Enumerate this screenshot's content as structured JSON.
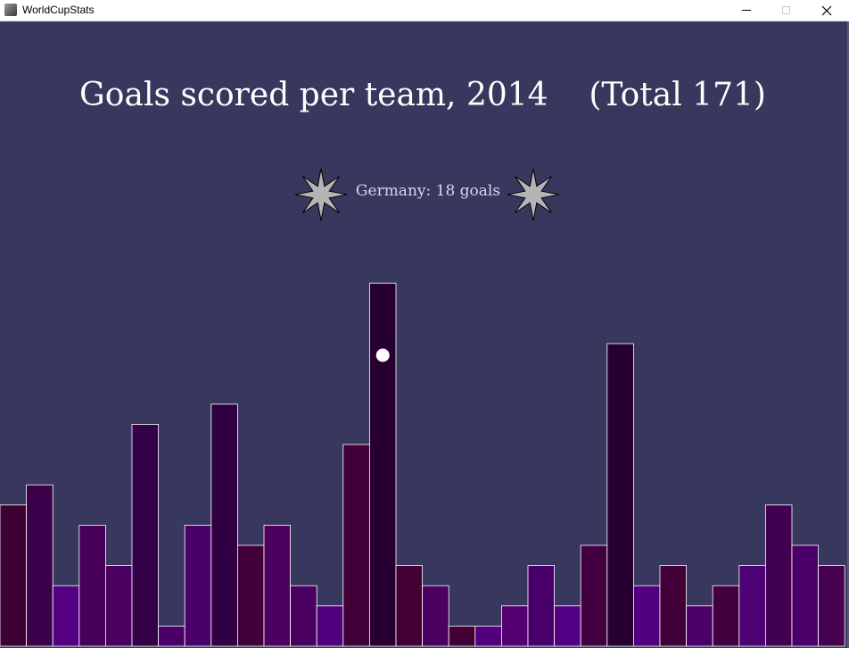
{
  "window": {
    "title": "WorldCupStats"
  },
  "chart_data": {
    "type": "bar",
    "title": "Goals scored per team, 2014",
    "total_label": "(Total 171)",
    "highlight": {
      "label": "Germany: 18 goals",
      "team": "Germany",
      "value": 18
    },
    "values": [
      7,
      8,
      3,
      6,
      4,
      11,
      1,
      6,
      12,
      5,
      6,
      3,
      2,
      10,
      18,
      4,
      3,
      1,
      1,
      2,
      4,
      2,
      5,
      15,
      3,
      4,
      2,
      3,
      4,
      7,
      5,
      4
    ],
    "colors": [
      "#3d0033",
      "#3a004a",
      "#540082",
      "#46005a",
      "#4a005e",
      "#340048",
      "#4a0068",
      "#4a006a",
      "#300043",
      "#420039",
      "#4d005e",
      "#4a005e",
      "#520080",
      "#420038",
      "#270031",
      "#420035",
      "#4a005e",
      "#420035",
      "#520080",
      "#520070",
      "#4a006a",
      "#530085",
      "#420040",
      "#270030",
      "#530080",
      "#420038",
      "#4a0068",
      "#420040",
      "#4e0075",
      "#420050",
      "#4a0068",
      "#460050"
    ],
    "ylim": [
      0,
      30
    ],
    "bar_edge_color": "#ffffff"
  }
}
